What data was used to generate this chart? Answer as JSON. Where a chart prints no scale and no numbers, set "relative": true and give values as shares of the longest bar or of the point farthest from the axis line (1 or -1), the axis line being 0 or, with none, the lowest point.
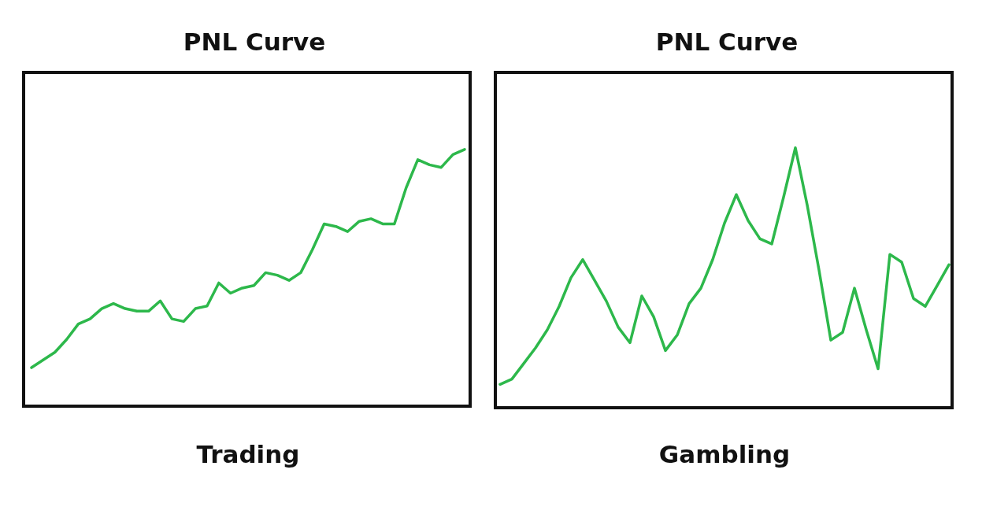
{
  "chart_data": [
    {
      "type": "line",
      "title": "PNL Curve",
      "xlabel": "Trading",
      "relative": true,
      "tick_labels": false,
      "marker": "none",
      "line_style": "solid",
      "categories": [
        null,
        null,
        null,
        null,
        null,
        null,
        null,
        null,
        null,
        null,
        null,
        null,
        null,
        null,
        null,
        null,
        null,
        null,
        null,
        null,
        null,
        null,
        null,
        null,
        null,
        null,
        null,
        null,
        null,
        null,
        null,
        null,
        null,
        null,
        null,
        null,
        null,
        null
      ],
      "series": [
        {
          "color": "#2db84b",
          "values": [
            0.15,
            0.18,
            0.21,
            0.26,
            0.32,
            0.34,
            0.38,
            0.4,
            0.38,
            0.37,
            0.37,
            0.41,
            0.34,
            0.33,
            0.38,
            0.39,
            0.48,
            0.44,
            0.46,
            0.47,
            0.52,
            0.51,
            0.49,
            0.52,
            0.61,
            0.71,
            0.7,
            0.68,
            0.72,
            0.73,
            0.71,
            0.71,
            0.85,
            0.96,
            0.94,
            0.93,
            0.98,
            1
          ]
        }
      ]
    },
    {
      "type": "line",
      "title": "PNL Curve",
      "xlabel": "Gambling",
      "relative": true,
      "tick_labels": false,
      "marker": "none",
      "line_style": "solid",
      "categories": [
        null,
        null,
        null,
        null,
        null,
        null,
        null,
        null,
        null,
        null,
        null,
        null,
        null,
        null,
        null,
        null,
        null,
        null,
        null,
        null,
        null,
        null,
        null,
        null,
        null,
        null,
        null,
        null,
        null,
        null,
        null,
        null,
        null,
        null,
        null,
        null,
        null,
        null,
        null
      ],
      "series": [
        {
          "color": "#2db84b",
          "values": [
            0.09,
            0.11,
            0.17,
            0.23,
            0.3,
            0.39,
            0.5,
            0.57,
            0.49,
            0.41,
            0.31,
            0.25,
            0.43,
            0.35,
            0.22,
            0.28,
            0.4,
            0.46,
            0.57,
            0.71,
            0.82,
            0.72,
            0.65,
            0.63,
            0.81,
            1,
            0.78,
            0.53,
            0.26,
            0.29,
            0.46,
            0.3,
            0.15,
            0.59,
            0.56,
            0.42,
            0.39,
            0.47,
            0.55
          ]
        }
      ]
    }
  ]
}
